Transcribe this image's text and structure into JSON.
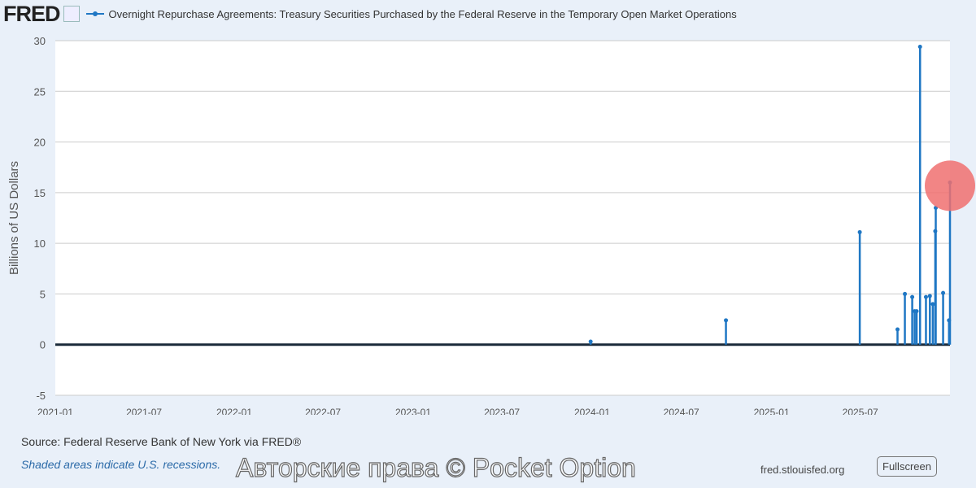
{
  "header": {
    "logo": "FRED",
    "series_icon": "line-chart-icon"
  },
  "chart_data": {
    "type": "line",
    "title": "Overnight Repurchase Agreements: Treasury Securities Purchased by the Federal Reserve in the Temporary Open Market Operations",
    "ylabel": "Billions of US Dollars",
    "xlabel": "",
    "ylim": [
      -5,
      30
    ],
    "yticks": [
      -5,
      0,
      5,
      10,
      15,
      20,
      25,
      30
    ],
    "xlim": [
      "2021-01-01",
      "2025-12-31"
    ],
    "xticks": [
      "2021-01",
      "2021-07",
      "2022-01",
      "2022-07",
      "2023-01",
      "2023-07",
      "2024-01",
      "2024-07",
      "2025-01",
      "2025-07"
    ],
    "grid": true,
    "color": "#1f77c4",
    "baseline_value": 0,
    "points": [
      {
        "x": "2023-12-29",
        "y": 0.3
      },
      {
        "x": "2024-09-30",
        "y": 2.4
      },
      {
        "x": "2025-06-30",
        "y": 11.1
      },
      {
        "x": "2025-09-15",
        "y": 1.5
      },
      {
        "x": "2025-09-30",
        "y": 5.0
      },
      {
        "x": "2025-10-15",
        "y": 4.7
      },
      {
        "x": "2025-10-20",
        "y": 3.3
      },
      {
        "x": "2025-10-24",
        "y": 3.3
      },
      {
        "x": "2025-10-31",
        "y": 29.4
      },
      {
        "x": "2025-11-12",
        "y": 4.7
      },
      {
        "x": "2025-11-20",
        "y": 4.8
      },
      {
        "x": "2025-11-26",
        "y": 4.0
      },
      {
        "x": "2025-12-01",
        "y": 11.2
      },
      {
        "x": "2025-12-02",
        "y": 13.5
      },
      {
        "x": "2025-12-17",
        "y": 5.1
      },
      {
        "x": "2025-12-29",
        "y": 2.4
      },
      {
        "x": "2025-12-31",
        "y": 16.0
      }
    ],
    "highlight": {
      "x": "2025-12-31",
      "y": 16.0,
      "color": "#f07070"
    }
  },
  "footer": {
    "source": "Source: Federal Reserve Bank of New York via FRED®",
    "recessions": "Shaded areas indicate U.S. recessions.",
    "url": "fred.stlouisfed.org",
    "fullscreen": "Fullscreen"
  },
  "watermark": "Авторские права © Pocket Option"
}
